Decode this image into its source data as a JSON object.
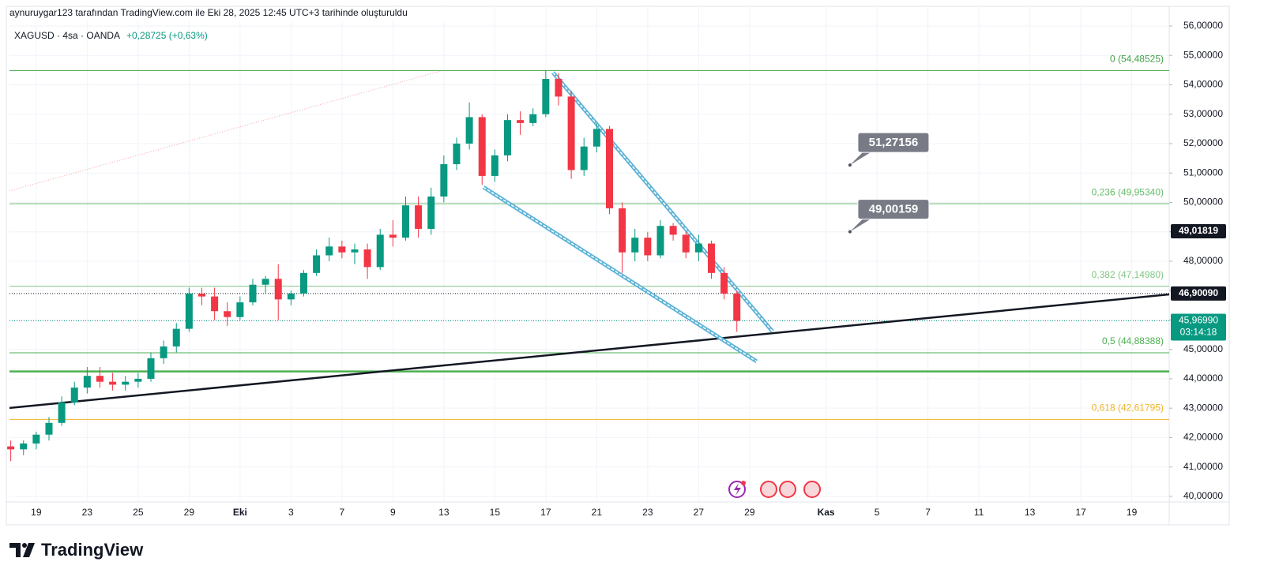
{
  "chart_data": {
    "type": "candlestick",
    "header": "aynuruygar123 tarafından TradingView.com ile Eki 28, 2025 12:45 UTC+3 tarihinde oluşturuldu",
    "symbol": "XAGUSD · 4sa · OANDA",
    "change": "+0,28725 (+0,63%)",
    "logo": "TradingView",
    "colors": {
      "up": "#089981",
      "down": "#f23645"
    },
    "xlim": [
      -1.05,
      44.47
    ],
    "ylim": [
      39.81,
      56.67
    ],
    "xticks": [
      {
        "value": 0,
        "label": "19"
      },
      {
        "value": 2,
        "label": "23"
      },
      {
        "value": 4,
        "label": "25"
      },
      {
        "value": 6,
        "label": "29"
      },
      {
        "value": 8,
        "label": "Eki"
      },
      {
        "value": 10,
        "label": "3"
      },
      {
        "value": 12,
        "label": "7"
      },
      {
        "value": 14,
        "label": "9"
      },
      {
        "value": 16,
        "label": "13"
      },
      {
        "value": 18,
        "label": "15"
      },
      {
        "value": 20,
        "label": "17"
      },
      {
        "value": 22,
        "label": "21"
      },
      {
        "value": 24,
        "label": "23"
      },
      {
        "value": 26,
        "label": "27"
      },
      {
        "value": 28,
        "label": "29"
      },
      {
        "value": 31,
        "label": "Kas"
      },
      {
        "value": 33,
        "label": "5"
      },
      {
        "value": 35,
        "label": "7"
      },
      {
        "value": 37,
        "label": "11"
      },
      {
        "value": 39,
        "label": "13"
      },
      {
        "value": 41,
        "label": "17"
      },
      {
        "value": 43,
        "label": "19"
      }
    ],
    "yticks": [
      {
        "value": 40,
        "label": "40,00000"
      },
      {
        "value": 41,
        "label": "41,00000"
      },
      {
        "value": 42,
        "label": "42,00000"
      },
      {
        "value": 43,
        "label": "43,00000"
      },
      {
        "value": 44,
        "label": "44,00000"
      },
      {
        "value": 45,
        "label": "45,00000"
      },
      {
        "value": 46,
        "label": "46,00000"
      },
      {
        "value": 47,
        "label": "47,00000"
      },
      {
        "value": 48,
        "label": "48,00000"
      },
      {
        "value": 49,
        "label": "49,00000"
      },
      {
        "value": 50,
        "label": "50,00000"
      },
      {
        "value": 51,
        "label": "51,00000"
      },
      {
        "value": 52,
        "label": "52,00000"
      },
      {
        "value": 53,
        "label": "53,00000"
      },
      {
        "value": 54,
        "label": "54,00000"
      },
      {
        "value": 55,
        "label": "55,00000"
      },
      {
        "value": 56,
        "label": "56,00000"
      }
    ],
    "x": [
      -1,
      -0.5,
      0,
      0.5,
      1,
      1.5,
      2,
      2.5,
      3,
      3.5,
      4,
      4.5,
      5,
      5.5,
      6,
      6.5,
      7,
      7.5,
      8,
      8.5,
      9,
      9.5,
      10,
      10.5,
      11,
      11.5,
      12,
      12.5,
      13,
      13.5,
      14,
      14.5,
      15,
      15.5,
      16,
      16.5,
      17,
      17.5,
      18,
      18.5,
      19,
      19.5,
      20,
      20.5,
      21,
      21.5,
      22,
      22.5,
      23,
      23.5,
      24,
      24.5,
      25,
      25.5,
      26,
      26.5,
      27,
      27.5
    ],
    "open": [
      41.7,
      41.6,
      41.8,
      42.1,
      42.5,
      43.2,
      43.7,
      44.1,
      43.9,
      43.8,
      43.9,
      44.0,
      44.7,
      45.1,
      45.7,
      46.9,
      46.8,
      46.3,
      46.1,
      46.6,
      47.2,
      47.4,
      46.7,
      46.9,
      47.6,
      48.2,
      48.5,
      48.3,
      48.4,
      47.8,
      48.9,
      48.8,
      49.9,
      49.1,
      50.2,
      51.3,
      52.0,
      52.9,
      50.9,
      51.6,
      52.8,
      52.7,
      53.0,
      54.2,
      53.6,
      51.1,
      51.9,
      52.5,
      49.8,
      48.3,
      48.8,
      48.2,
      49.2,
      48.9,
      48.3,
      48.6,
      47.6,
      46.9
    ],
    "high": [
      41.9,
      41.9,
      42.2,
      42.7,
      43.4,
      43.9,
      44.4,
      44.4,
      44.2,
      44.1,
      44.2,
      44.9,
      45.3,
      45.9,
      47.1,
      47.1,
      47.1,
      46.6,
      46.8,
      47.4,
      47.5,
      47.9,
      47.0,
      47.7,
      48.4,
      48.8,
      48.7,
      48.6,
      48.6,
      49.1,
      49.4,
      50.2,
      50.2,
      50.5,
      51.6,
      52.2,
      53.4,
      53.0,
      51.8,
      53.0,
      53.1,
      53.2,
      54.49,
      54.4,
      53.8,
      52.2,
      52.7,
      52.6,
      50.0,
      49.1,
      49.0,
      49.4,
      49.3,
      49.0,
      48.9,
      48.7,
      47.8,
      47.0
    ],
    "low": [
      41.2,
      41.4,
      41.6,
      41.9,
      42.4,
      43.1,
      43.5,
      43.7,
      43.6,
      43.6,
      43.7,
      43.9,
      44.5,
      44.9,
      45.6,
      46.5,
      46.0,
      45.8,
      46.0,
      46.5,
      46.9,
      46.0,
      46.5,
      46.8,
      47.5,
      48.0,
      48.1,
      47.9,
      47.4,
      47.7,
      48.5,
      48.7,
      48.8,
      48.9,
      50.0,
      51.1,
      51.8,
      50.6,
      50.7,
      51.4,
      52.3,
      52.6,
      52.9,
      53.3,
      50.8,
      50.9,
      51.7,
      49.6,
      47.6,
      48.0,
      48.0,
      48.1,
      48.7,
      48.1,
      48.0,
      47.4,
      46.7,
      45.6
    ],
    "close": [
      41.6,
      41.8,
      42.1,
      42.5,
      43.2,
      43.7,
      44.1,
      43.9,
      43.8,
      43.9,
      44.0,
      44.7,
      45.1,
      45.7,
      46.9,
      46.8,
      46.3,
      46.1,
      46.6,
      47.2,
      47.4,
      46.7,
      46.9,
      47.6,
      48.2,
      48.5,
      48.3,
      48.4,
      47.8,
      48.9,
      48.8,
      49.9,
      49.1,
      50.2,
      51.3,
      52.0,
      52.9,
      50.9,
      51.6,
      52.8,
      52.7,
      53.0,
      54.2,
      53.6,
      51.1,
      51.9,
      52.5,
      49.8,
      48.3,
      48.8,
      48.2,
      49.2,
      48.9,
      48.3,
      48.6,
      47.6,
      46.9,
      45.9699
    ],
    "levels": [
      {
        "value": 54.48525,
        "label": "0 (54,48525)",
        "color": "#43a047"
      },
      {
        "value": 49.9534,
        "label": "0,236 (49,95340)",
        "color": "#66bb6a"
      },
      {
        "value": 47.1498,
        "label": "0,382 (47,14980)",
        "color": "#81c784"
      },
      {
        "value": 44.88388,
        "label": "0,5 (44,88388)",
        "color": "#4caf50"
      },
      {
        "value": 42.61795,
        "label": "0,618 (42,61795)",
        "color": "#f0b429"
      }
    ],
    "hlines": [
      {
        "value": 44.25,
        "color": "#4caf50"
      }
    ],
    "trendlines": [
      {
        "x": [
          -1.05,
          44.47
        ],
        "y": [
          43.007,
          46.872
        ],
        "color": "#131722",
        "style": "solid"
      },
      {
        "x": [
          20.28,
          28.9
        ],
        "y": [
          54.42,
          45.61
        ],
        "color": "#5fb3d6",
        "style": "double"
      },
      {
        "x": [
          17.55,
          28.28
        ],
        "y": [
          50.52,
          44.59
        ],
        "color": "#5fb3d6",
        "style": "double"
      },
      {
        "x": [
          -1.05,
          15.88
        ],
        "y": [
          50.39,
          54.47
        ],
        "color": "#f4a6a6",
        "style": "dotted"
      }
    ],
    "price_lines": [
      {
        "value": 46.9009,
        "color": "#131722"
      },
      {
        "value": 45.9699,
        "color": "#089981"
      }
    ],
    "price_tags": [
      {
        "value": 49.01819,
        "label": "49,01819",
        "color": "#131722"
      },
      {
        "value": 46.9009,
        "label": "46,90090",
        "color": "#131722"
      }
    ],
    "last": {
      "value": 45.9699,
      "label": "45,96990",
      "countdown": "03:14:18",
      "color": "#089981"
    },
    "callouts": [
      {
        "x": 31.94,
        "value": 51.27156,
        "label": "51,27156"
      },
      {
        "x": 31.94,
        "value": 49.00159,
        "label": "49,00159"
      }
    ]
  }
}
